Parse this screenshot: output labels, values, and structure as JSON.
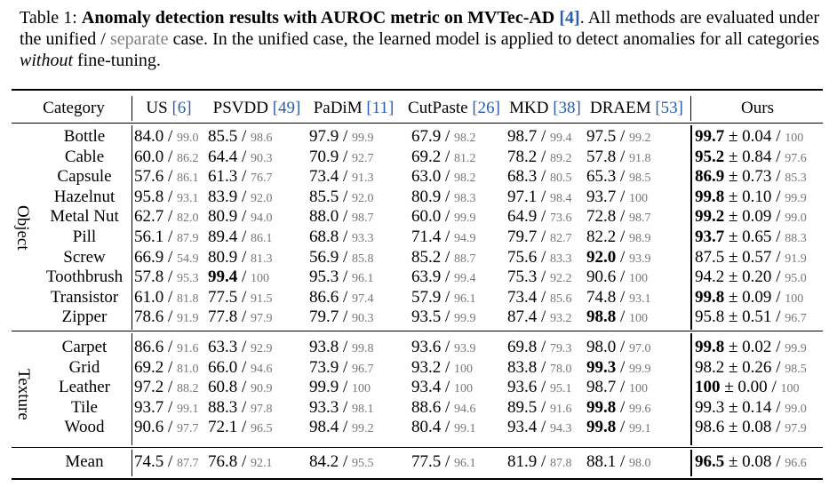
{
  "caption": {
    "label": "Table 1:",
    "bold_text": "Anomaly detection results with AUROC metric on MVTec-AD",
    "ref": "[4]",
    "rest1": ". All methods are evaluated under the unified / ",
    "separate": "separate",
    "rest2": " case. In the unified case, the learned model is applied to detect anomalies for all categories ",
    "italic": "without",
    "rest3": " fine-tuning."
  },
  "headers": [
    {
      "name": "Category",
      "ref": ""
    },
    {
      "name": "US",
      "ref": "[6]"
    },
    {
      "name": "PSVDD",
      "ref": "[49]"
    },
    {
      "name": "PaDiM",
      "ref": "[11]"
    },
    {
      "name": "CutPaste",
      "ref": "[26]"
    },
    {
      "name": "MKD",
      "ref": "[38]"
    },
    {
      "name": "DRAEM",
      "ref": "[53]"
    },
    {
      "name": "Ours",
      "ref": ""
    }
  ],
  "groups": [
    {
      "name": "Object",
      "rows": [
        {
          "category": "Bottle",
          "values": [
            [
              "84.0",
              "99.0"
            ],
            [
              "85.5",
              "98.6"
            ],
            [
              "97.9",
              "99.9"
            ],
            [
              "67.9",
              "98.2"
            ],
            [
              "98.7",
              "99.4"
            ],
            [
              "97.5",
              "99.2"
            ]
          ],
          "ours": {
            "u": "99.7",
            "pm": "± 0.04",
            "s": "100"
          },
          "bold": [
            6
          ]
        },
        {
          "category": "Cable",
          "values": [
            [
              "60.0",
              "86.2"
            ],
            [
              "64.4",
              "90.3"
            ],
            [
              "70.9",
              "92.7"
            ],
            [
              "69.2",
              "81.2"
            ],
            [
              "78.2",
              "89.2"
            ],
            [
              "57.8",
              "91.8"
            ]
          ],
          "ours": {
            "u": "95.2",
            "pm": "± 0.84",
            "s": "97.6"
          },
          "bold": [
            6
          ]
        },
        {
          "category": "Capsule",
          "values": [
            [
              "57.6",
              "86.1"
            ],
            [
              "61.3",
              "76.7"
            ],
            [
              "73.4",
              "91.3"
            ],
            [
              "63.0",
              "98.2"
            ],
            [
              "68.3",
              "80.5"
            ],
            [
              "65.3",
              "98.5"
            ]
          ],
          "ours": {
            "u": "86.9",
            "pm": "± 0.73",
            "s": "85.3"
          },
          "bold": [
            6
          ]
        },
        {
          "category": "Hazelnut",
          "values": [
            [
              "95.8",
              "93.1"
            ],
            [
              "83.9",
              "92.0"
            ],
            [
              "85.5",
              "92.0"
            ],
            [
              "80.9",
              "98.3"
            ],
            [
              "97.1",
              "98.4"
            ],
            [
              "93.7",
              "100"
            ]
          ],
          "ours": {
            "u": "99.8",
            "pm": "± 0.10",
            "s": "99.9"
          },
          "bold": [
            6
          ]
        },
        {
          "category": "Metal Nut",
          "values": [
            [
              "62.7",
              "82.0"
            ],
            [
              "80.9",
              "94.0"
            ],
            [
              "88.0",
              "98.7"
            ],
            [
              "60.0",
              "99.9"
            ],
            [
              "64.9",
              "73.6"
            ],
            [
              "72.8",
              "98.7"
            ]
          ],
          "ours": {
            "u": "99.2",
            "pm": "± 0.09",
            "s": "99.0"
          },
          "bold": [
            6
          ]
        },
        {
          "category": "Pill",
          "values": [
            [
              "56.1",
              "87.9"
            ],
            [
              "89.4",
              "86.1"
            ],
            [
              "68.8",
              "93.3"
            ],
            [
              "71.4",
              "94.9"
            ],
            [
              "79.7",
              "82.7"
            ],
            [
              "82.2",
              "98.9"
            ]
          ],
          "ours": {
            "u": "93.7",
            "pm": "± 0.65",
            "s": "88.3"
          },
          "bold": [
            6
          ]
        },
        {
          "category": "Screw",
          "values": [
            [
              "66.9",
              "54.9"
            ],
            [
              "80.9",
              "81.3"
            ],
            [
              "56.9",
              "85.8"
            ],
            [
              "85.2",
              "88.7"
            ],
            [
              "75.6",
              "83.3"
            ],
            [
              "92.0",
              "93.9"
            ]
          ],
          "ours": {
            "u": "87.5",
            "pm": "± 0.57",
            "s": "91.9"
          },
          "bold": [
            5
          ]
        },
        {
          "category": "Toothbrush",
          "values": [
            [
              "57.8",
              "95.3"
            ],
            [
              "99.4",
              "100"
            ],
            [
              "95.3",
              "96.1"
            ],
            [
              "63.9",
              "99.4"
            ],
            [
              "75.3",
              "92.2"
            ],
            [
              "90.6",
              "100"
            ]
          ],
          "ours": {
            "u": "94.2",
            "pm": "± 0.20",
            "s": "95.0"
          },
          "bold": [
            1
          ]
        },
        {
          "category": "Transistor",
          "values": [
            [
              "61.0",
              "81.8"
            ],
            [
              "77.5",
              "91.5"
            ],
            [
              "86.6",
              "97.4"
            ],
            [
              "57.9",
              "96.1"
            ],
            [
              "73.4",
              "85.6"
            ],
            [
              "74.8",
              "93.1"
            ]
          ],
          "ours": {
            "u": "99.8",
            "pm": "± 0.09",
            "s": "100"
          },
          "bold": [
            6
          ]
        },
        {
          "category": "Zipper",
          "values": [
            [
              "78.6",
              "91.9"
            ],
            [
              "77.8",
              "97.9"
            ],
            [
              "79.7",
              "90.3"
            ],
            [
              "93.5",
              "99.9"
            ],
            [
              "87.4",
              "93.2"
            ],
            [
              "98.8",
              "100"
            ]
          ],
          "ours": {
            "u": "95.8",
            "pm": "± 0.51",
            "s": "96.7"
          },
          "bold": [
            5
          ]
        }
      ]
    },
    {
      "name": "Texture",
      "rows": [
        {
          "category": "Carpet",
          "values": [
            [
              "86.6",
              "91.6"
            ],
            [
              "63.3",
              "92.9"
            ],
            [
              "93.8",
              "99.8"
            ],
            [
              "93.6",
              "93.9"
            ],
            [
              "69.8",
              "79.3"
            ],
            [
              "98.0",
              "97.0"
            ]
          ],
          "ours": {
            "u": "99.8",
            "pm": "± 0.02",
            "s": "99.9"
          },
          "bold": [
            6
          ]
        },
        {
          "category": "Grid",
          "values": [
            [
              "69.2",
              "81.0"
            ],
            [
              "66.0",
              "94.6"
            ],
            [
              "73.9",
              "96.7"
            ],
            [
              "93.2",
              "100"
            ],
            [
              "83.8",
              "78.0"
            ],
            [
              "99.3",
              "99.9"
            ]
          ],
          "ours": {
            "u": "98.2",
            "pm": "± 0.26",
            "s": "98.5"
          },
          "bold": [
            5
          ]
        },
        {
          "category": "Leather",
          "values": [
            [
              "97.2",
              "88.2"
            ],
            [
              "60.8",
              "90.9"
            ],
            [
              "99.9",
              "100"
            ],
            [
              "93.4",
              "100"
            ],
            [
              "93.6",
              "95.1"
            ],
            [
              "98.7",
              "100"
            ]
          ],
          "ours": {
            "u": "100",
            "pm": "± 0.00",
            "s": "100"
          },
          "bold": [
            6
          ]
        },
        {
          "category": "Tile",
          "values": [
            [
              "93.7",
              "99.1"
            ],
            [
              "88.3",
              "97.8"
            ],
            [
              "93.3",
              "98.1"
            ],
            [
              "88.6",
              "94.6"
            ],
            [
              "89.5",
              "91.6"
            ],
            [
              "99.8",
              "99.6"
            ]
          ],
          "ours": {
            "u": "99.3",
            "pm": "± 0.14",
            "s": "99.0"
          },
          "bold": [
            5
          ]
        },
        {
          "category": "Wood",
          "values": [
            [
              "90.6",
              "97.7"
            ],
            [
              "72.1",
              "96.5"
            ],
            [
              "98.4",
              "99.2"
            ],
            [
              "80.4",
              "99.1"
            ],
            [
              "93.4",
              "94.3"
            ],
            [
              "99.8",
              "99.1"
            ]
          ],
          "ours": {
            "u": "98.6",
            "pm": "± 0.08",
            "s": "97.9"
          },
          "bold": [
            5
          ]
        }
      ]
    }
  ],
  "mean": {
    "category": "Mean",
    "values": [
      [
        "74.5",
        "87.7"
      ],
      [
        "76.8",
        "92.1"
      ],
      [
        "84.2",
        "95.5"
      ],
      [
        "77.5",
        "96.1"
      ],
      [
        "81.9",
        "87.8"
      ],
      [
        "88.1",
        "98.0"
      ]
    ],
    "ours": {
      "u": "96.5",
      "pm": "± 0.08",
      "s": "96.6"
    },
    "bold": [
      6
    ]
  }
}
